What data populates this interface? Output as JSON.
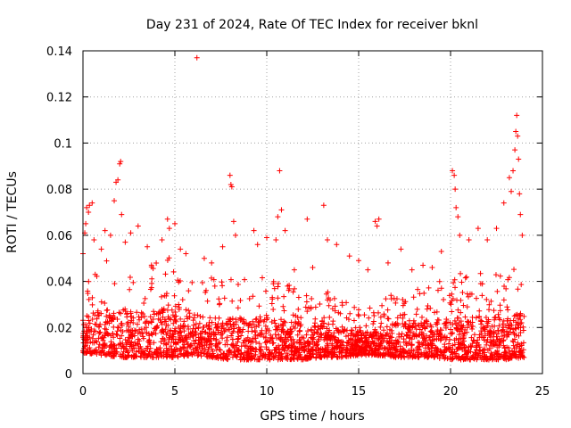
{
  "chart_data": {
    "type": "scatter",
    "title": "Day 231 of 2024, Rate Of TEC Index for receiver bknl",
    "xlabel": "GPS time / hours",
    "ylabel": "ROTI / TECUs",
    "xlim": [
      0,
      25
    ],
    "ylim": [
      0,
      0.14
    ],
    "x_ticks": [
      0,
      5,
      10,
      15,
      20,
      25
    ],
    "x_tick_labels": [
      "0",
      "5",
      "10",
      "15",
      "20",
      "25"
    ],
    "y_ticks": [
      0,
      0.02,
      0.04,
      0.06,
      0.08,
      0.1,
      0.12,
      0.14
    ],
    "y_tick_labels": [
      "0",
      "0.02",
      "0.04",
      "0.06",
      "0.08",
      "0.1",
      "0.12",
      "0.14"
    ],
    "grid": true,
    "marker": "+",
    "color": "#ff0000",
    "baseline": {
      "x": [
        0,
        1,
        2,
        3,
        4,
        5,
        6,
        7,
        8,
        9,
        10,
        11,
        12,
        13,
        14,
        15,
        16,
        17,
        18,
        19,
        20,
        21,
        22,
        23,
        24
      ],
      "low": [
        0.009,
        0.008,
        0.007,
        0.007,
        0.007,
        0.007,
        0.008,
        0.007,
        0.006,
        0.006,
        0.006,
        0.006,
        0.006,
        0.007,
        0.007,
        0.008,
        0.008,
        0.007,
        0.007,
        0.007,
        0.006,
        0.006,
        0.006,
        0.006,
        0.007
      ],
      "high": [
        0.03,
        0.035,
        0.036,
        0.033,
        0.035,
        0.037,
        0.033,
        0.03,
        0.03,
        0.03,
        0.032,
        0.029,
        0.027,
        0.028,
        0.025,
        0.022,
        0.024,
        0.027,
        0.027,
        0.028,
        0.031,
        0.032,
        0.031,
        0.033,
        0.032
      ]
    },
    "outliers": [
      {
        "x": 0.0,
        "y": 0.052
      },
      {
        "x": 0.1,
        "y": 0.061
      },
      {
        "x": 0.15,
        "y": 0.065
      },
      {
        "x": 0.2,
        "y": 0.072
      },
      {
        "x": 0.3,
        "y": 0.07
      },
      {
        "x": 0.35,
        "y": 0.073
      },
      {
        "x": 0.5,
        "y": 0.074
      },
      {
        "x": 0.6,
        "y": 0.058
      },
      {
        "x": 1.0,
        "y": 0.054
      },
      {
        "x": 1.2,
        "y": 0.062
      },
      {
        "x": 1.5,
        "y": 0.06
      },
      {
        "x": 1.7,
        "y": 0.075
      },
      {
        "x": 1.8,
        "y": 0.083
      },
      {
        "x": 1.9,
        "y": 0.084
      },
      {
        "x": 2.0,
        "y": 0.091
      },
      {
        "x": 2.05,
        "y": 0.092
      },
      {
        "x": 2.1,
        "y": 0.069
      },
      {
        "x": 2.3,
        "y": 0.057
      },
      {
        "x": 2.6,
        "y": 0.061
      },
      {
        "x": 3.0,
        "y": 0.064
      },
      {
        "x": 3.5,
        "y": 0.055
      },
      {
        "x": 4.3,
        "y": 0.058
      },
      {
        "x": 4.6,
        "y": 0.067
      },
      {
        "x": 4.7,
        "y": 0.063
      },
      {
        "x": 5.0,
        "y": 0.065
      },
      {
        "x": 5.3,
        "y": 0.054
      },
      {
        "x": 5.6,
        "y": 0.052
      },
      {
        "x": 6.2,
        "y": 0.137
      },
      {
        "x": 6.6,
        "y": 0.05
      },
      {
        "x": 7.0,
        "y": 0.048
      },
      {
        "x": 7.6,
        "y": 0.055
      },
      {
        "x": 8.0,
        "y": 0.086
      },
      {
        "x": 8.05,
        "y": 0.082
      },
      {
        "x": 8.1,
        "y": 0.081
      },
      {
        "x": 8.2,
        "y": 0.066
      },
      {
        "x": 8.3,
        "y": 0.06
      },
      {
        "x": 9.3,
        "y": 0.062
      },
      {
        "x": 9.5,
        "y": 0.056
      },
      {
        "x": 10.0,
        "y": 0.059
      },
      {
        "x": 10.5,
        "y": 0.058
      },
      {
        "x": 10.6,
        "y": 0.068
      },
      {
        "x": 10.7,
        "y": 0.088
      },
      {
        "x": 10.8,
        "y": 0.071
      },
      {
        "x": 11.0,
        "y": 0.062
      },
      {
        "x": 11.5,
        "y": 0.045
      },
      {
        "x": 12.2,
        "y": 0.067
      },
      {
        "x": 12.5,
        "y": 0.046
      },
      {
        "x": 13.1,
        "y": 0.073
      },
      {
        "x": 13.3,
        "y": 0.058
      },
      {
        "x": 13.8,
        "y": 0.056
      },
      {
        "x": 14.5,
        "y": 0.051
      },
      {
        "x": 15.0,
        "y": 0.049
      },
      {
        "x": 15.5,
        "y": 0.045
      },
      {
        "x": 15.9,
        "y": 0.066
      },
      {
        "x": 16.0,
        "y": 0.064
      },
      {
        "x": 16.1,
        "y": 0.067
      },
      {
        "x": 16.6,
        "y": 0.048
      },
      {
        "x": 17.3,
        "y": 0.054
      },
      {
        "x": 17.9,
        "y": 0.045
      },
      {
        "x": 18.5,
        "y": 0.047
      },
      {
        "x": 19.0,
        "y": 0.046
      },
      {
        "x": 19.5,
        "y": 0.053
      },
      {
        "x": 20.1,
        "y": 0.088
      },
      {
        "x": 20.2,
        "y": 0.086
      },
      {
        "x": 20.25,
        "y": 0.08
      },
      {
        "x": 20.3,
        "y": 0.072
      },
      {
        "x": 20.4,
        "y": 0.068
      },
      {
        "x": 20.5,
        "y": 0.06
      },
      {
        "x": 21.0,
        "y": 0.058
      },
      {
        "x": 21.5,
        "y": 0.063
      },
      {
        "x": 22.0,
        "y": 0.058
      },
      {
        "x": 22.5,
        "y": 0.063
      },
      {
        "x": 22.9,
        "y": 0.074
      },
      {
        "x": 23.2,
        "y": 0.085
      },
      {
        "x": 23.3,
        "y": 0.079
      },
      {
        "x": 23.4,
        "y": 0.088
      },
      {
        "x": 23.5,
        "y": 0.097
      },
      {
        "x": 23.55,
        "y": 0.105
      },
      {
        "x": 23.6,
        "y": 0.112
      },
      {
        "x": 23.65,
        "y": 0.103
      },
      {
        "x": 23.7,
        "y": 0.093
      },
      {
        "x": 23.75,
        "y": 0.078
      },
      {
        "x": 23.8,
        "y": 0.069
      },
      {
        "x": 23.9,
        "y": 0.06
      }
    ]
  }
}
